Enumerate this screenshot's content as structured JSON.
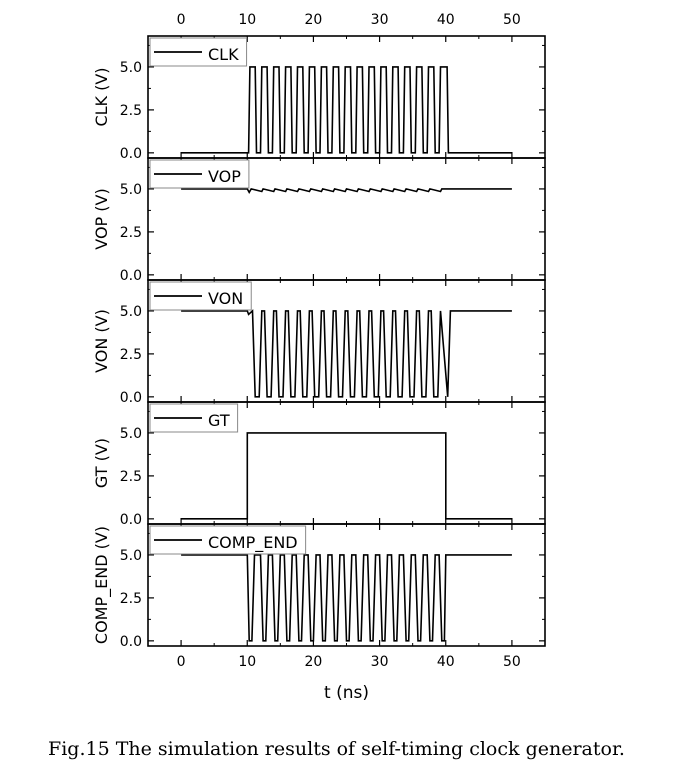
{
  "caption": "Fig.15 The simulation results of self-timing clock generator.",
  "chart_data": {
    "type": "line",
    "xlabel": "t (ns)",
    "xlim": [
      -5,
      55
    ],
    "x_ticks": [
      0,
      10,
      20,
      30,
      40,
      50
    ],
    "x_tick_labels": [
      "0",
      "10",
      "20",
      "30",
      "40",
      "50"
    ],
    "y_ticks": [
      0,
      2.5,
      5
    ],
    "y_tick_labels": [
      "0.0",
      "2.5",
      "5.0"
    ],
    "grid": false,
    "legend_placement": "top-left",
    "panels": [
      {
        "ylabel": "CLK (V)",
        "legend": "CLK",
        "ylim": [
          -0.3,
          6.8
        ],
        "x": [
          0,
          10.2,
          10.4,
          11.2,
          11.4,
          12.0,
          12.2,
          13.0,
          13.2,
          13.8,
          14.0,
          14.8,
          15.0,
          15.6,
          15.8,
          16.6,
          16.8,
          17.4,
          17.6,
          18.4,
          18.6,
          19.2,
          19.4,
          20.2,
          20.4,
          21.0,
          21.2,
          22.0,
          22.2,
          22.8,
          23.0,
          23.8,
          24.0,
          24.6,
          24.8,
          25.6,
          25.8,
          26.4,
          26.6,
          27.4,
          27.6,
          28.2,
          28.4,
          29.2,
          29.4,
          30.0,
          30.2,
          31.0,
          31.2,
          31.8,
          32.0,
          32.8,
          33.0,
          33.6,
          33.8,
          34.6,
          34.8,
          35.4,
          35.6,
          36.4,
          36.6,
          37.2,
          37.4,
          38.2,
          38.4,
          39.0,
          39.2,
          40.2,
          40.4,
          50
        ],
        "y": [
          0,
          0,
          5,
          5,
          0,
          0,
          5,
          5,
          0,
          0,
          5,
          5,
          0,
          0,
          5,
          5,
          0,
          0,
          5,
          5,
          0,
          0,
          5,
          5,
          0,
          0,
          5,
          5,
          0,
          0,
          5,
          5,
          0,
          0,
          5,
          5,
          0,
          0,
          5,
          5,
          0,
          0,
          5,
          5,
          0,
          0,
          5,
          5,
          0,
          0,
          5,
          5,
          0,
          0,
          5,
          5,
          0,
          0,
          5,
          5,
          0,
          0,
          5,
          5,
          0,
          0,
          5,
          5,
          0,
          0
        ]
      },
      {
        "ylabel": "VOP (V)",
        "legend": "VOP",
        "ylim": [
          -0.3,
          6.8
        ],
        "x": [
          0,
          10,
          10.3,
          10.6,
          12.2,
          12.4,
          14.0,
          14.2,
          15.8,
          16.0,
          17.6,
          17.8,
          19.4,
          19.6,
          21.2,
          21.4,
          23.0,
          23.2,
          24.8,
          25.0,
          26.6,
          26.8,
          28.4,
          28.6,
          30.2,
          30.4,
          32.0,
          32.2,
          33.8,
          34.0,
          35.6,
          35.8,
          37.4,
          37.6,
          39.2,
          39.4,
          40.2,
          50
        ],
        "y": [
          5,
          5,
          4.8,
          5,
          4.85,
          5,
          4.85,
          5,
          4.85,
          5,
          4.85,
          5,
          4.85,
          5,
          4.85,
          5,
          4.85,
          5,
          4.85,
          5,
          4.85,
          5,
          4.85,
          5,
          4.85,
          5,
          4.85,
          5,
          4.85,
          5,
          4.85,
          5,
          4.85,
          5,
          4.85,
          5,
          5,
          5
        ]
      },
      {
        "ylabel": "VON (V)",
        "legend": "VON",
        "ylim": [
          -0.3,
          6.8
        ],
        "x": [
          0,
          10,
          10.2,
          10.8,
          11.2,
          11.8,
          12.2,
          12.6,
          13.0,
          13.6,
          14.0,
          14.4,
          14.8,
          15.4,
          15.8,
          16.2,
          16.6,
          17.2,
          17.6,
          18.0,
          18.4,
          19.0,
          19.4,
          19.8,
          20.2,
          20.8,
          21.2,
          21.6,
          22.0,
          22.6,
          23.0,
          23.4,
          23.8,
          24.4,
          24.8,
          25.2,
          25.6,
          26.2,
          26.6,
          27.0,
          27.4,
          28.0,
          28.4,
          28.8,
          29.2,
          29.8,
          30.2,
          30.6,
          31.0,
          31.6,
          32.0,
          32.4,
          32.8,
          33.4,
          33.8,
          34.2,
          34.6,
          35.2,
          35.6,
          36.0,
          36.4,
          37.0,
          37.4,
          37.8,
          38.2,
          38.8,
          39.2,
          40.3,
          40.7,
          50
        ],
        "y": [
          5,
          5,
          4.8,
          5,
          0,
          0,
          5,
          5,
          0,
          0,
          5,
          5,
          0,
          0,
          5,
          5,
          0,
          0,
          5,
          5,
          0,
          0,
          5,
          5,
          0,
          0,
          5,
          5,
          0,
          0,
          5,
          5,
          0,
          0,
          5,
          5,
          0,
          0,
          5,
          5,
          0,
          0,
          5,
          5,
          0,
          0,
          5,
          5,
          0,
          0,
          5,
          5,
          0,
          0,
          5,
          5,
          0,
          0,
          5,
          5,
          0,
          0,
          5,
          5,
          0,
          0,
          5,
          0,
          5,
          5
        ]
      },
      {
        "ylabel": "GT (V)",
        "legend": "GT",
        "ylim": [
          -0.3,
          6.8
        ],
        "x": [
          0,
          10,
          10,
          40,
          40,
          50
        ],
        "y": [
          0,
          0,
          5,
          5,
          0,
          0
        ]
      },
      {
        "ylabel": "COMP_END (V)",
        "legend": "COMP_END",
        "ylim": [
          -0.3,
          6.8
        ],
        "x": [
          0,
          10,
          10.3,
          10.7,
          11.1,
          12.0,
          12.4,
          12.8,
          13.2,
          13.8,
          14.2,
          14.6,
          15.0,
          15.6,
          16.0,
          16.4,
          16.8,
          17.4,
          17.8,
          18.2,
          18.6,
          19.2,
          19.6,
          20.0,
          20.4,
          21.0,
          21.4,
          21.8,
          22.2,
          22.8,
          23.2,
          23.6,
          24.0,
          24.6,
          25.0,
          25.4,
          25.8,
          26.4,
          26.8,
          27.2,
          27.6,
          28.2,
          28.6,
          29.0,
          29.4,
          30.0,
          30.4,
          30.8,
          31.2,
          31.8,
          32.2,
          32.6,
          33.0,
          33.6,
          34.0,
          34.4,
          34.8,
          35.4,
          35.8,
          36.2,
          36.6,
          37.2,
          37.6,
          38.0,
          38.4,
          39.0,
          39.4,
          39.8,
          40.0,
          40.4,
          50
        ],
        "y": [
          5,
          5,
          0,
          0,
          5,
          5,
          0,
          0,
          5,
          5,
          0,
          0,
          5,
          5,
          0,
          0,
          5,
          5,
          0,
          0,
          5,
          5,
          0,
          0,
          5,
          5,
          0,
          0,
          5,
          5,
          0,
          0,
          5,
          5,
          0,
          0,
          5,
          5,
          0,
          0,
          5,
          5,
          0,
          0,
          5,
          5,
          0,
          0,
          5,
          5,
          0,
          0,
          5,
          5,
          0,
          0,
          5,
          5,
          0,
          0,
          5,
          5,
          0,
          0,
          5,
          5,
          0,
          0,
          5,
          5,
          5
        ]
      }
    ]
  }
}
